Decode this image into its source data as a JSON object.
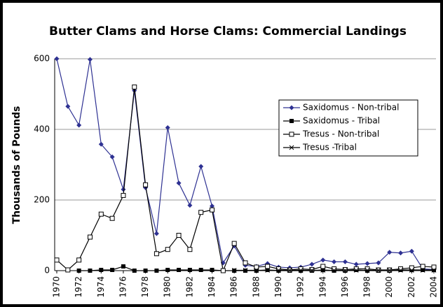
{
  "chart_data": {
    "type": "line",
    "title": "Butter Clams and Horse Clams: Commercial Landings",
    "y_label": "Thousands of Pounds",
    "x": [
      1970,
      1971,
      1972,
      1973,
      1974,
      1975,
      1976,
      1977,
      1978,
      1979,
      1980,
      1981,
      1982,
      1983,
      1984,
      1985,
      1986,
      1987,
      1988,
      1989,
      1990,
      1991,
      1992,
      1993,
      1994,
      1995,
      1996,
      1997,
      1998,
      1999,
      2000,
      2001,
      2002,
      2003,
      2004
    ],
    "xlim": [
      1970,
      2004
    ],
    "xticks": [
      1970,
      1972,
      1974,
      1976,
      1978,
      1980,
      1982,
      1984,
      1986,
      1988,
      1990,
      1992,
      1994,
      1996,
      1998,
      2000,
      2002,
      2004
    ],
    "ylim": [
      0,
      600
    ],
    "yticks": [
      0,
      200,
      400,
      600
    ],
    "grid": true,
    "legend": "upper right",
    "series": [
      {
        "name": "Saxidomus - Non-tribal",
        "color": "#2e3192",
        "marker": "diamond",
        "values": [
          600,
          465,
          412,
          598,
          358,
          322,
          230,
          510,
          235,
          105,
          405,
          248,
          185,
          295,
          183,
          22,
          70,
          15,
          12,
          20,
          10,
          8,
          10,
          18,
          30,
          25,
          25,
          18,
          20,
          22,
          52,
          50,
          55,
          5,
          3
        ]
      },
      {
        "name": "Saxidomus - Tribal",
        "color": "#000000",
        "marker": "square",
        "values": [
          null,
          null,
          0,
          0,
          2,
          2,
          12,
          0,
          0,
          0,
          2,
          2,
          2,
          2,
          2,
          0,
          0,
          0,
          0,
          2,
          0,
          0,
          0,
          0,
          2,
          0,
          0,
          2,
          0,
          0,
          0,
          2,
          2,
          2,
          2
        ]
      },
      {
        "name": "Tresus - Non-tribal",
        "color": "#000000",
        "marker": "open-square",
        "values": [
          30,
          2,
          30,
          95,
          160,
          148,
          213,
          520,
          243,
          48,
          60,
          100,
          60,
          165,
          172,
          0,
          77,
          22,
          10,
          12,
          5,
          2,
          5,
          3,
          12,
          5,
          3,
          5,
          5,
          2,
          2,
          5,
          8,
          12,
          10
        ]
      },
      {
        "name": "Tresus -Tribal",
        "color": "#000000",
        "marker": "x",
        "values": [
          null,
          null,
          null,
          null,
          null,
          null,
          null,
          null,
          null,
          null,
          null,
          null,
          null,
          null,
          null,
          null,
          1,
          1,
          1,
          1,
          1,
          1,
          1,
          1,
          1,
          1,
          1,
          1,
          1,
          1,
          1,
          1,
          1,
          1,
          1
        ]
      }
    ]
  }
}
